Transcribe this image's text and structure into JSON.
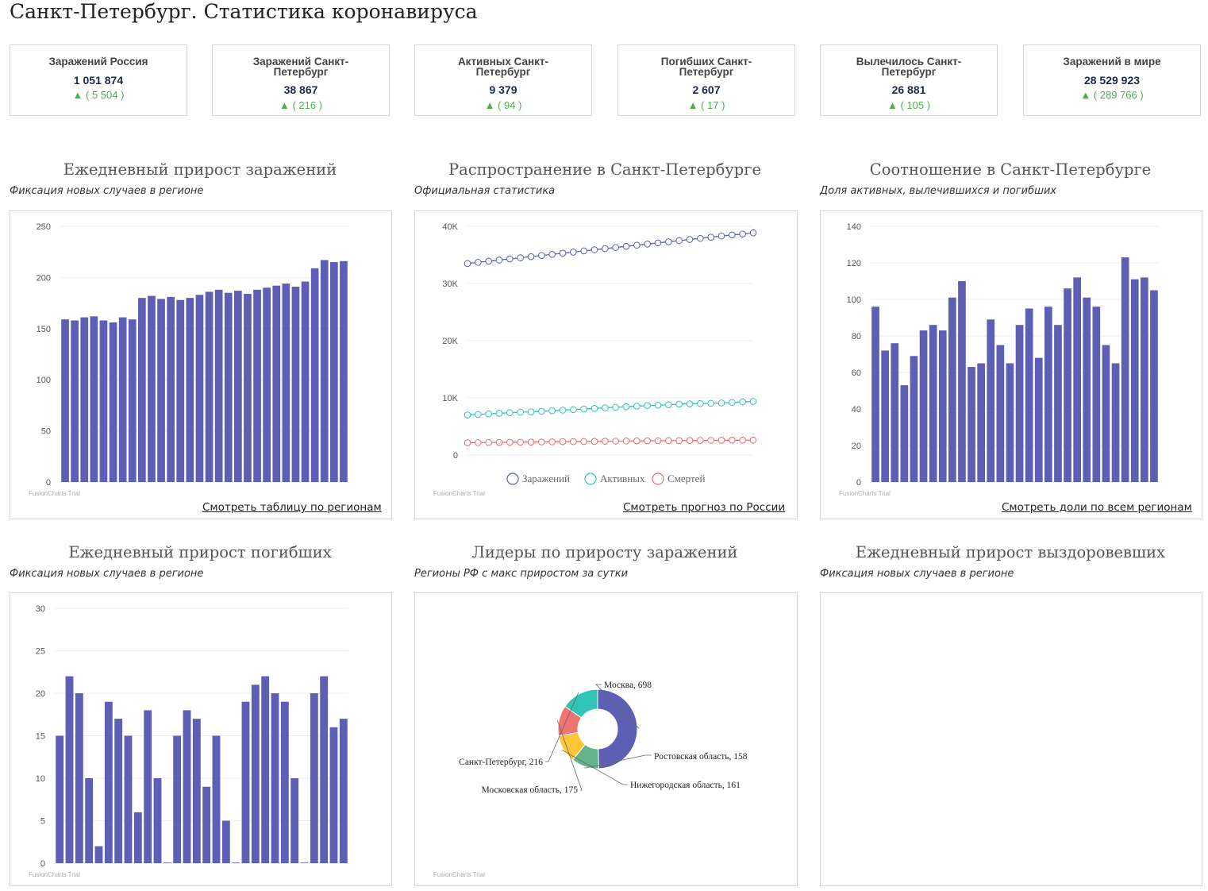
{
  "page_title": "Санкт-Петербург. Статистика коронавируса",
  "cards": [
    {
      "label": "Заражений Россия",
      "value": "1 051 874",
      "delta": "▲ ( 5 504 )"
    },
    {
      "label": "Заражений Санкт-Петербург",
      "value": "38 867",
      "delta": "▲ ( 216 )"
    },
    {
      "label": "Активных Санкт-Петербург",
      "value": "9 379",
      "delta": "▲ ( 94 )"
    },
    {
      "label": "Погибших Санкт-Петербург",
      "value": "2 607",
      "delta": "▲ ( 17 )"
    },
    {
      "label": "Вылечилось Санкт-Петербург",
      "value": "26 881",
      "delta": "▲ ( 105 )"
    },
    {
      "label": "Заражений в мире",
      "value": "28 529 923",
      "delta": "▲ ( 289 766 )"
    }
  ],
  "sections": [
    {
      "title": "Ежедневный прирост заражений",
      "subtitle": "Фиксация новых случаев в регионе",
      "link": "Смотреть таблицу по регионам",
      "watermark": "FusionCharts Trial"
    },
    {
      "title": "Распространение в Санкт-Петербурге",
      "subtitle": "Официальная статистика",
      "link": "Смотреть прогноз по России",
      "watermark": "FusionCharts Trial"
    },
    {
      "title": "Соотношение в Санкт-Петербурге",
      "subtitle": "Доля активных, вылечившихся и погибших",
      "link": "Смотреть доли по всем регионам",
      "watermark": "FusionCharts Trial"
    },
    {
      "title": "Ежедневный прирост погибших",
      "subtitle": "Фиксация новых случаев в регионе",
      "watermark": "FusionCharts Trial"
    },
    {
      "title": "Лидеры по приросту заражений",
      "subtitle": "Регионы РФ с макс приростом за сутки",
      "watermark": "FusionCharts Trial"
    },
    {
      "title": "Ежедневный прирост выздоровевших",
      "subtitle": "Фиксация новых случаев в регионе"
    }
  ],
  "colors": {
    "bar": "#5c5fb3",
    "line_infected": "#5c5fb3",
    "line_active": "#2ec4b6",
    "line_deaths": "#ef6b6b",
    "pie": [
      "#5c5fb3",
      "#63b48a",
      "#fdc637",
      "#f07372",
      "#2ec4b6"
    ],
    "delta": "#4caf50"
  },
  "chart_data": [
    {
      "type": "bar",
      "ylim": [
        0,
        250
      ],
      "yticks": [
        "0",
        "50",
        "100",
        "150",
        "200",
        "250"
      ],
      "values": [
        159,
        158,
        161,
        162,
        158,
        156,
        161,
        159,
        180,
        182,
        179,
        181,
        178,
        180,
        183,
        186,
        188,
        185,
        187,
        184,
        188,
        190,
        192,
        194,
        191,
        196,
        209,
        217,
        215,
        216
      ]
    },
    {
      "type": "line",
      "ylim": [
        0,
        40000
      ],
      "yticks": [
        "0",
        "10K",
        "20K",
        "30K",
        "40K"
      ],
      "series": [
        {
          "name": "Заражений",
          "values": [
            33500,
            33700,
            33900,
            34100,
            34300,
            34500,
            34700,
            34900,
            35100,
            35300,
            35500,
            35700,
            35900,
            36100,
            36300,
            36500,
            36700,
            36900,
            37100,
            37300,
            37500,
            37700,
            37900,
            38100,
            38300,
            38500,
            38650,
            38867
          ]
        },
        {
          "name": "Активных",
          "values": [
            7000,
            7100,
            7200,
            7300,
            7400,
            7500,
            7550,
            7650,
            7750,
            7850,
            7950,
            8050,
            8150,
            8250,
            8350,
            8450,
            8550,
            8650,
            8700,
            8800,
            8900,
            8950,
            9000,
            9050,
            9100,
            9200,
            9300,
            9379
          ]
        },
        {
          "name": "Смертей",
          "values": [
            2150,
            2170,
            2190,
            2210,
            2230,
            2250,
            2270,
            2290,
            2310,
            2330,
            2350,
            2370,
            2390,
            2410,
            2430,
            2450,
            2470,
            2490,
            2500,
            2520,
            2530,
            2540,
            2555,
            2570,
            2580,
            2590,
            2600,
            2607
          ]
        }
      ]
    },
    {
      "type": "bar",
      "ylim": [
        0,
        140
      ],
      "yticks": [
        "0",
        "20",
        "40",
        "60",
        "80",
        "100",
        "120",
        "140"
      ],
      "values": [
        96,
        72,
        76,
        53,
        69,
        83,
        86,
        83,
        101,
        110,
        63,
        65,
        89,
        75,
        65,
        86,
        95,
        68,
        96,
        86,
        106,
        112,
        101,
        96,
        75,
        65,
        123,
        111,
        112,
        105
      ]
    },
    {
      "type": "bar",
      "ylim": [
        0,
        30
      ],
      "yticks": [
        "0",
        "5",
        "10",
        "15",
        "20",
        "25",
        "30"
      ],
      "values": [
        15,
        22,
        20,
        10,
        2,
        19,
        17,
        15,
        6,
        18,
        10,
        0,
        15,
        18,
        17,
        9,
        15,
        5,
        0,
        19,
        21,
        22,
        20,
        19,
        10,
        0,
        20,
        22,
        16,
        17
      ]
    },
    {
      "type": "pie",
      "variant": "doughnut",
      "slices": [
        {
          "label": "Москва, 698",
          "value": 698
        },
        {
          "label": "Ростовская область, 158",
          "value": 158
        },
        {
          "label": "Нижегородская область, 161",
          "value": 161
        },
        {
          "label": "Московская область, 175",
          "value": 175
        },
        {
          "label": "Санкт-Петербург, 216",
          "value": 216
        }
      ]
    }
  ]
}
